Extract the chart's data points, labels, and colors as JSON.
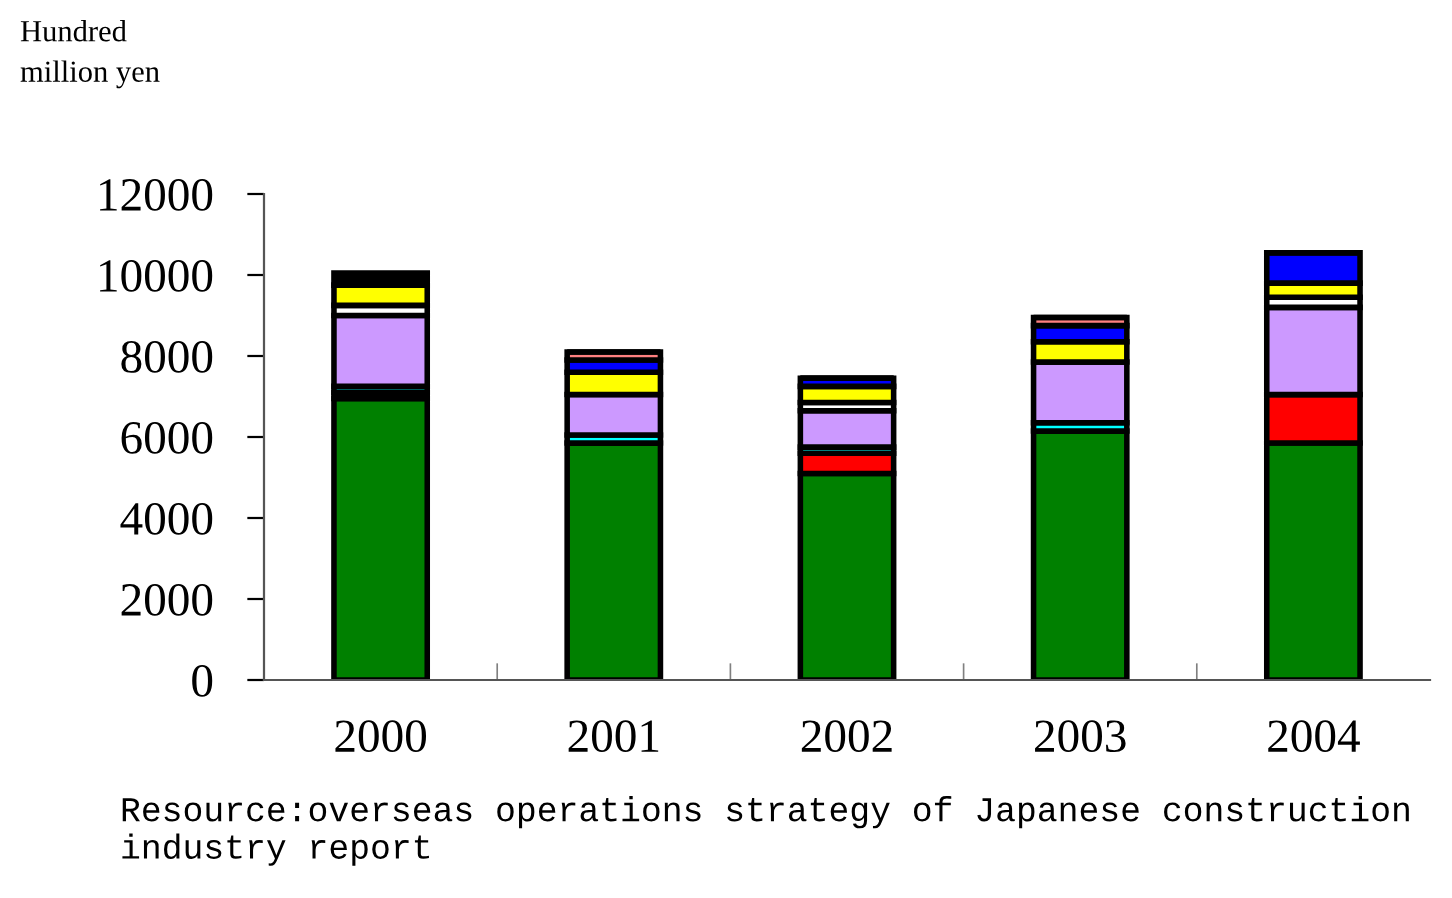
{
  "chart_data": {
    "type": "bar",
    "stacked": true,
    "ylabel": "Hundred\nmillion yen",
    "categories": [
      "2000",
      "2001",
      "2002",
      "2003",
      "2004"
    ],
    "series": [
      {
        "color": "#008000",
        "values": [
          6950,
          5850,
          5100,
          6150,
          5850
        ]
      },
      {
        "color": "#ff0000",
        "values": [
          0,
          0,
          500,
          0,
          1200
        ]
      },
      {
        "color": "#000000",
        "values": [
          150,
          0,
          0,
          null,
          0
        ]
      },
      {
        "color": "#00ffff",
        "values": [
          150,
          200,
          150,
          200,
          0
        ]
      },
      {
        "color": "#cc99ff",
        "values": [
          1750,
          1000,
          900,
          1500,
          2150
        ]
      },
      {
        "color": "#ffffff",
        "values": [
          250,
          0,
          200,
          0,
          250
        ]
      },
      {
        "color": "#ffff00",
        "values": [
          500,
          550,
          400,
          500,
          350
        ]
      },
      {
        "color": "#0000ff",
        "values": [
          0,
          300,
          200,
          400,
          750
        ]
      },
      {
        "color": "#ff8080",
        "values": [
          0,
          200,
          0,
          200,
          0
        ]
      },
      {
        "color": "#000000",
        "values": [
          300,
          0,
          0,
          0,
          0
        ]
      }
    ],
    "ylim": [
      0,
      12000
    ],
    "yticks": [
      0,
      2000,
      4000,
      6000,
      8000,
      10000,
      12000
    ],
    "grid": false,
    "legend": false,
    "annotations": [
      "Resource:overseas operations strategy of Japanese construction industry report"
    ]
  }
}
